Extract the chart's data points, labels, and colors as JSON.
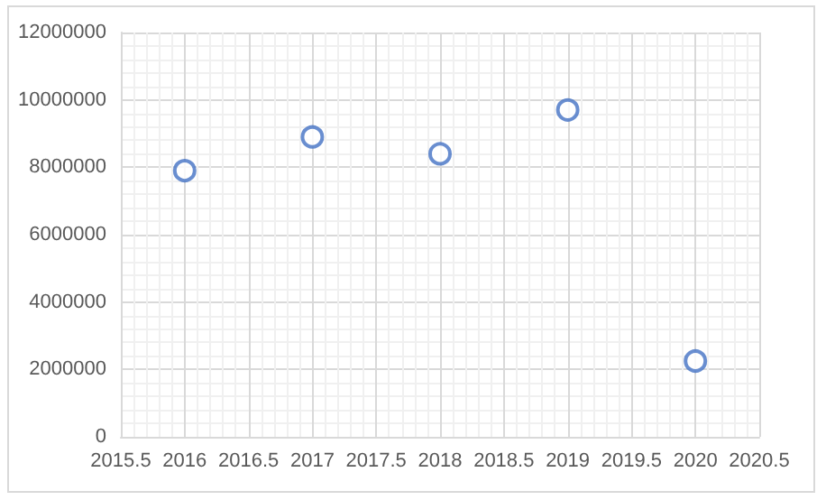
{
  "chart_data": {
    "type": "scatter",
    "x": [
      2016,
      2017,
      2018,
      2019,
      2020
    ],
    "values": [
      7900000,
      8900000,
      8400000,
      9700000,
      2250000
    ],
    "color": "#4472c4",
    "xlim": [
      2015.5,
      2020.5
    ],
    "xticks": [
      2015.5,
      2016,
      2016.5,
      2017,
      2017.5,
      2018,
      2018.5,
      2019,
      2019.5,
      2020,
      2020.5
    ],
    "ylim": [
      0,
      12000000
    ],
    "yticks": [
      0,
      2000000,
      4000000,
      6000000,
      8000000,
      10000000,
      12000000
    ],
    "grid": true,
    "marker": "circle"
  }
}
